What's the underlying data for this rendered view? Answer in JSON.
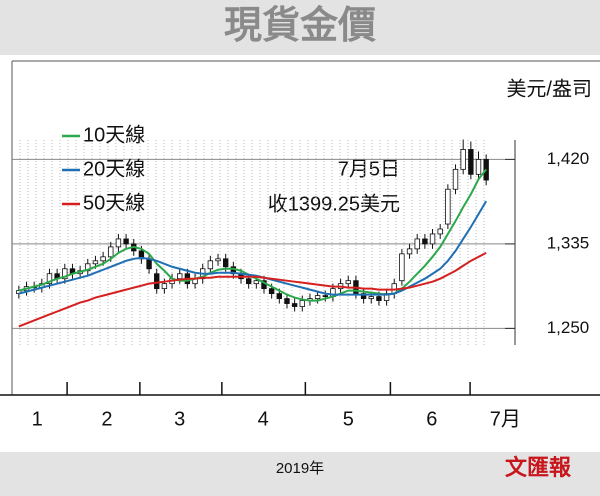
{
  "chart_data": {
    "type": "candlestick",
    "title": "現貨金價",
    "unit_label": "美元/盎司",
    "footer": "2019年",
    "logo": "文匯報",
    "annotations": [
      "7月5日",
      "收1399.25美元"
    ],
    "xlim": [
      0,
      62
    ],
    "xticks": [
      6.8,
      16.3,
      27.0,
      37.9,
      49.0,
      59.4
    ],
    "xlabels": [
      {
        "value": 2.9,
        "label": "1"
      },
      {
        "value": 12.0,
        "label": "2"
      },
      {
        "value": 21.5,
        "label": "3"
      },
      {
        "value": 32.4,
        "label": "4"
      },
      {
        "value": 43.5,
        "label": "5"
      },
      {
        "value": 54.4,
        "label": "6"
      },
      {
        "value": 64.0,
        "label": "7月"
      }
    ],
    "ylim": [
      1183,
      1518
    ],
    "yticks": [
      {
        "value": 1250,
        "label": "1,250"
      },
      {
        "value": 1335,
        "label": "1,335"
      },
      {
        "value": 1420,
        "label": "1,420"
      }
    ],
    "grid": true,
    "up_color": "#ffffff",
    "down_color": "#111111",
    "open": [
      1285,
      1288,
      1292,
      1291,
      1295,
      1305,
      1300,
      1310,
      1305,
      1308,
      1315,
      1318,
      1322,
      1332,
      1340,
      1335,
      1328,
      1320,
      1305,
      1290,
      1295,
      1300,
      1305,
      1295,
      1300,
      1310,
      1318,
      1320,
      1312,
      1305,
      1300,
      1295,
      1298,
      1290,
      1285,
      1280,
      1275,
      1272,
      1278,
      1280,
      1283,
      1282,
      1290,
      1295,
      1298,
      1285,
      1280,
      1282,
      1278,
      1285,
      1298,
      1325,
      1330,
      1340,
      1335,
      1345,
      1355,
      1390,
      1410,
      1430,
      1405,
      1420
    ],
    "high": [
      1293,
      1297,
      1297,
      1300,
      1310,
      1310,
      1315,
      1315,
      1313,
      1320,
      1323,
      1327,
      1337,
      1345,
      1345,
      1340,
      1333,
      1325,
      1310,
      1300,
      1305,
      1310,
      1310,
      1305,
      1315,
      1323,
      1325,
      1325,
      1317,
      1310,
      1305,
      1303,
      1303,
      1295,
      1290,
      1285,
      1280,
      1283,
      1285,
      1288,
      1288,
      1295,
      1300,
      1303,
      1303,
      1290,
      1287,
      1287,
      1290,
      1300,
      1330,
      1335,
      1345,
      1345,
      1350,
      1355,
      1395,
      1415,
      1440,
      1438,
      1428,
      1425
    ],
    "low": [
      1280,
      1283,
      1286,
      1286,
      1290,
      1295,
      1295,
      1300,
      1300,
      1303,
      1310,
      1313,
      1317,
      1327,
      1330,
      1323,
      1315,
      1305,
      1285,
      1285,
      1290,
      1295,
      1290,
      1290,
      1295,
      1305,
      1313,
      1307,
      1300,
      1295,
      1290,
      1290,
      1285,
      1280,
      1275,
      1270,
      1267,
      1267,
      1273,
      1275,
      1277,
      1277,
      1285,
      1290,
      1280,
      1275,
      1275,
      1273,
      1273,
      1280,
      1293,
      1320,
      1325,
      1330,
      1330,
      1340,
      1350,
      1385,
      1405,
      1400,
      1400,
      1394
    ],
    "close": [
      1288,
      1292,
      1291,
      1295,
      1305,
      1300,
      1310,
      1305,
      1308,
      1315,
      1318,
      1322,
      1332,
      1340,
      1335,
      1328,
      1320,
      1310,
      1290,
      1295,
      1300,
      1305,
      1295,
      1300,
      1310,
      1318,
      1320,
      1312,
      1305,
      1300,
      1295,
      1298,
      1290,
      1285,
      1280,
      1275,
      1272,
      1278,
      1280,
      1283,
      1282,
      1290,
      1295,
      1298,
      1285,
      1280,
      1282,
      1278,
      1285,
      1295,
      1325,
      1330,
      1340,
      1335,
      1345,
      1350,
      1390,
      1410,
      1430,
      1405,
      1420,
      1399.25
    ],
    "series": [
      {
        "name": "10天線",
        "color": "#2aa84a",
        "values": [
          1288,
          1290,
          1292,
          1294,
          1297,
          1300,
          1302,
          1305,
          1307,
          1309,
          1312,
          1315,
          1320,
          1326,
          1330,
          1332,
          1330,
          1325,
          1315,
          1308,
          1300,
          1298,
          1298,
          1300,
          1302,
          1306,
          1309,
          1310,
          1310,
          1308,
          1304,
          1300,
          1296,
          1292,
          1288,
          1284,
          1281,
          1279,
          1278,
          1278,
          1280,
          1282,
          1285,
          1288,
          1288,
          1287,
          1286,
          1285,
          1284,
          1285,
          1290,
          1297,
          1305,
          1313,
          1322,
          1332,
          1345,
          1358,
          1372,
          1385,
          1400,
          1410
        ]
      },
      {
        "name": "20天線",
        "color": "#1f6fb5",
        "values": [
          1285,
          1287,
          1289,
          1291,
          1293,
          1295,
          1297,
          1299,
          1301,
          1303,
          1306,
          1309,
          1312,
          1315,
          1318,
          1320,
          1321,
          1320,
          1318,
          1315,
          1312,
          1310,
          1308,
          1306,
          1305,
          1305,
          1306,
          1306,
          1306,
          1305,
          1304,
          1303,
          1301,
          1299,
          1297,
          1295,
          1293,
          1291,
          1289,
          1287,
          1285,
          1284,
          1284,
          1284,
          1284,
          1284,
          1284,
          1284,
          1284,
          1285,
          1288,
          1292,
          1296,
          1300,
          1305,
          1310,
          1318,
          1328,
          1340,
          1352,
          1365,
          1378
        ]
      },
      {
        "name": "50天線",
        "color": "#d62020",
        "values": [
          1252,
          1255,
          1258,
          1261,
          1264,
          1267,
          1270,
          1273,
          1276,
          1278,
          1281,
          1283,
          1285,
          1287,
          1289,
          1291,
          1293,
          1295,
          1296,
          1297,
          1298,
          1299,
          1300,
          1300,
          1301,
          1301,
          1302,
          1302,
          1302,
          1302,
          1302,
          1302,
          1301,
          1300,
          1299,
          1298,
          1297,
          1296,
          1295,
          1294,
          1293,
          1292,
          1292,
          1291,
          1291,
          1290,
          1290,
          1289,
          1289,
          1289,
          1290,
          1291,
          1293,
          1295,
          1297,
          1300,
          1304,
          1308,
          1313,
          1318,
          1322,
          1326
        ]
      }
    ]
  }
}
